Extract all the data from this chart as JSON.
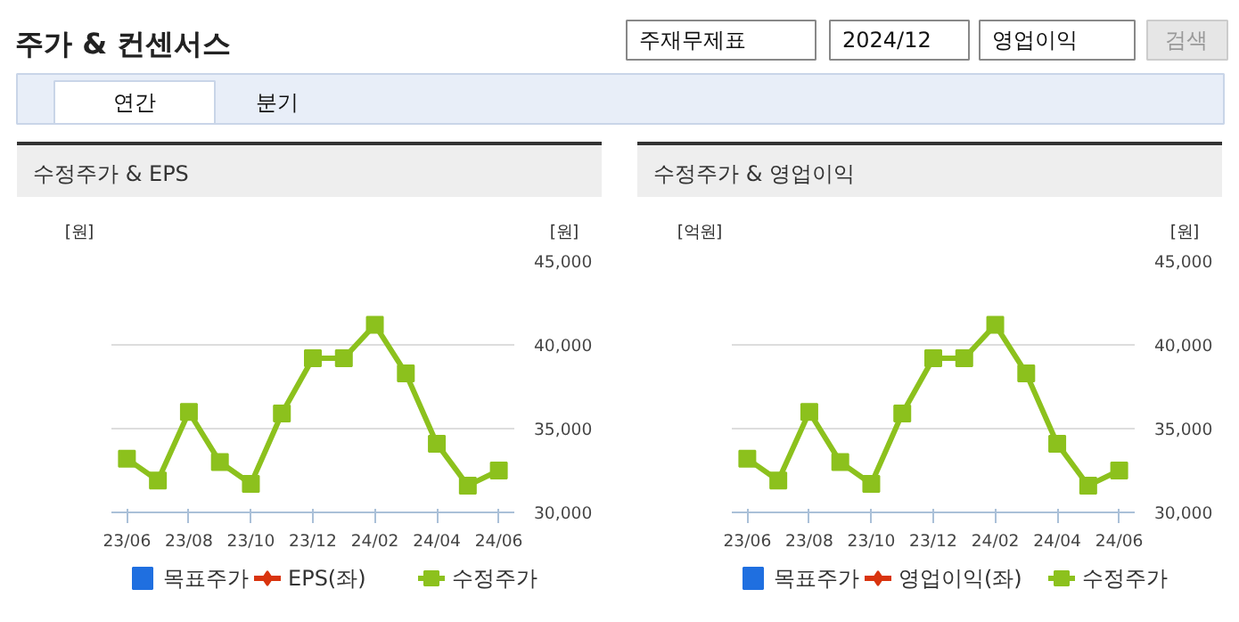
{
  "chart_data": [
    {
      "type": "other",
      "title": "주가 & 컨센서스",
      "annotations": [
        "주재무제표",
        "2024/12",
        "영업이익",
        "검색",
        "연간",
        "분기"
      ]
    },
    {
      "type": "line",
      "title": "수정주가 & EPS",
      "ylabel": "[원]",
      "y2label": "[원]",
      "categories": [
        "23/06",
        null,
        "23/08",
        null,
        "23/10",
        null,
        "23/12",
        null,
        "24/02",
        null,
        "24/04",
        null,
        "24/06"
      ],
      "series": [
        {
          "name": "목표주가",
          "type": "bar",
          "color": "#1f6fe0",
          "values": [
            null,
            null,
            null,
            null,
            null,
            null,
            null,
            null,
            null,
            null,
            null,
            null,
            null
          ]
        },
        {
          "name": "EPS(좌)",
          "type": "line",
          "marker": "diamond",
          "color": "#d9340f",
          "values": [
            null,
            null,
            null,
            null,
            null,
            null,
            null,
            null,
            null,
            null,
            null,
            null,
            null
          ]
        },
        {
          "name": "수정주가",
          "type": "line",
          "marker": "square",
          "axis": "y2",
          "color": "#8cc11d",
          "values": [
            33200,
            31900,
            36000,
            33000,
            31700,
            35900,
            39200,
            39200,
            41200,
            38300,
            34100,
            31600,
            32500
          ]
        }
      ],
      "y2lim": [
        30000,
        45000
      ],
      "y2ticks": [
        {
          "value": 30000,
          "label": "30,000"
        },
        {
          "value": 35000,
          "label": "35,000"
        },
        {
          "value": 40000,
          "label": "40,000"
        },
        {
          "value": 45000,
          "label": "45,000"
        }
      ],
      "grid": "y",
      "legend": "bottom"
    },
    {
      "type": "line",
      "title": "수정주가 & 영업이익",
      "ylabel": "[억원]",
      "y2label": "[원]",
      "categories": [
        "23/06",
        null,
        "23/08",
        null,
        "23/10",
        null,
        "23/12",
        null,
        "24/02",
        null,
        "24/04",
        null,
        "24/06"
      ],
      "series": [
        {
          "name": "목표주가",
          "type": "bar",
          "color": "#1f6fe0",
          "values": [
            null,
            null,
            null,
            null,
            null,
            null,
            null,
            null,
            null,
            null,
            null,
            null,
            null
          ]
        },
        {
          "name": "영업이익(좌)",
          "type": "line",
          "marker": "diamond",
          "color": "#d9340f",
          "values": [
            null,
            null,
            null,
            null,
            null,
            null,
            null,
            null,
            null,
            null,
            null,
            null,
            null
          ]
        },
        {
          "name": "수정주가",
          "type": "line",
          "marker": "square",
          "axis": "y2",
          "color": "#8cc11d",
          "values": [
            33200,
            31900,
            36000,
            33000,
            31700,
            35900,
            39200,
            39200,
            41200,
            38300,
            34100,
            31600,
            32500
          ]
        }
      ],
      "y2lim": [
        30000,
        45000
      ],
      "y2ticks": [
        {
          "value": 30000,
          "label": "30,000"
        },
        {
          "value": 35000,
          "label": "35,000"
        },
        {
          "value": 40000,
          "label": "40,000"
        },
        {
          "value": 45000,
          "label": "45,000"
        }
      ],
      "grid": "y",
      "legend": "bottom"
    }
  ]
}
